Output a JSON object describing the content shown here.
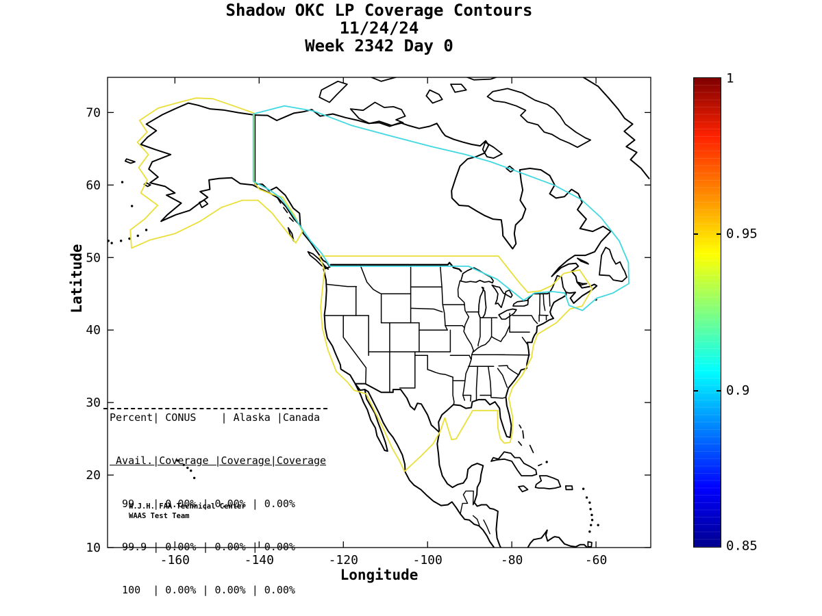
{
  "figure": {
    "title_line1": "Shadow OKC LP Coverage Contours",
    "title_line2": "11/24/24",
    "title_line3": "Week 2342 Day 0"
  },
  "axes": {
    "xlabel": "Longitude",
    "ylabel": "Latitude",
    "xlim": [
      -176,
      -47
    ],
    "ylim": [
      10,
      74.85
    ],
    "xtick_values": [
      -160,
      -140,
      -120,
      -100,
      -80,
      -60
    ],
    "xtick_labels": [
      "-160",
      "-140",
      "-120",
      "-100",
      "-80",
      "-60"
    ],
    "ytick_values": [
      70,
      60,
      50,
      40,
      30,
      20,
      10
    ],
    "ytick_labels": [
      "70",
      "60",
      "50",
      "40",
      "30",
      "20",
      "10"
    ]
  },
  "colorbar": {
    "range": [
      0.85,
      1
    ],
    "tick_values": [
      1,
      0.95,
      0.9,
      0.85
    ],
    "tick_labels": [
      "1",
      "0.95",
      "0.9",
      "0.85"
    ],
    "colormap": [
      {
        "t": 0,
        "c": "#00008f"
      },
      {
        "t": 0.125,
        "c": "#0000ff"
      },
      {
        "t": 0.375,
        "c": "#00ffff"
      },
      {
        "t": 0.5,
        "c": "#80ff80"
      },
      {
        "t": 0.625,
        "c": "#ffff00"
      },
      {
        "t": 0.75,
        "c": "#ff8c00"
      },
      {
        "t": 0.875,
        "c": "#ff2200"
      },
      {
        "t": 1,
        "c": "#7f0000"
      }
    ]
  },
  "coverage_table": {
    "lines": [
      "Percent| CONUS    | Alaska |Canada",
      " Avail.|Coverage |Coverage|Coverage",
      "  99   | 0.00% | 0.00% | 0.00%",
      "  99.9 | 0.00% | 0.00% | 0.00%",
      "  100  | 0.00% | 0.00% | 0.00%"
    ]
  },
  "credit": {
    "line1": "W.J.H. FAA Technical Center",
    "line2": "WAAS Test Team"
  },
  "chart_data": {
    "type": "contour-map",
    "title": "Shadow OKC LP Coverage Contours",
    "date": "11/24/24",
    "week": 2342,
    "day": 0,
    "xlabel": "Longitude",
    "ylabel": "Latitude",
    "xlim": [
      -176,
      -47
    ],
    "ylim": [
      10,
      74.85
    ],
    "colorbar_range": [
      0.85,
      1
    ],
    "colorbar_ticks": [
      1,
      0.95,
      0.9,
      0.85
    ],
    "coverage_table": {
      "columns": [
        "Percent Avail.",
        "CONUS Coverage",
        "Alaska Coverage",
        "Canada Coverage"
      ],
      "rows": [
        {
          "percent_avail": "99",
          "conus": "0.00%",
          "alaska": "0.00%",
          "canada": "0.00%"
        },
        {
          "percent_avail": "99.9",
          "conus": "0.00%",
          "alaska": "0.00%",
          "canada": "0.00%"
        },
        {
          "percent_avail": "100",
          "conus": "0.00%",
          "alaska": "0.00%",
          "canada": "0.00%"
        }
      ]
    },
    "contours": [
      {
        "level": 0.95,
        "color": "#eadf38",
        "loops": [
          [
            [
              -124.5,
              48.3
            ],
            [
              -125.7,
              50.2
            ],
            [
              -83.2,
              50.2
            ],
            [
              -78.3,
              46.6
            ],
            [
              -76.2,
              45.2
            ],
            [
              -73.2,
              45.4
            ],
            [
              -70.6,
              46.1
            ],
            [
              -67.7,
              47.8
            ],
            [
              -63.9,
              48.3
            ],
            [
              -60.9,
              45.7
            ],
            [
              -63.3,
              43.3
            ],
            [
              -66.2,
              42.9
            ],
            [
              -69.4,
              41
            ],
            [
              -71.7,
              40.2
            ],
            [
              -73.9,
              39.4
            ],
            [
              -74.9,
              37.8
            ],
            [
              -75.3,
              36.2
            ],
            [
              -77.5,
              33.8
            ],
            [
              -79.8,
              32.1
            ],
            [
              -80.7,
              30.6
            ],
            [
              -79.8,
              28
            ],
            [
              -79.9,
              25.8
            ],
            [
              -80.4,
              24.5
            ],
            [
              -81.8,
              24.4
            ],
            [
              -82.7,
              25
            ],
            [
              -83.3,
              26.5
            ],
            [
              -83.4,
              28.9
            ],
            [
              -89.3,
              28.9
            ],
            [
              -93.2,
              25
            ],
            [
              -94.3,
              24.9
            ],
            [
              -95.9,
              27.9
            ],
            [
              -97,
              26
            ],
            [
              -98.7,
              24.3
            ],
            [
              -101.6,
              22.6
            ],
            [
              -105.5,
              20.5
            ],
            [
              -106.7,
              22
            ],
            [
              -108.4,
              23.7
            ],
            [
              -110.5,
              26.4
            ],
            [
              -113,
              29.3
            ],
            [
              -114.6,
              31.2
            ],
            [
              -117.5,
              31.7
            ],
            [
              -119,
              32.8
            ],
            [
              -121.7,
              34.3
            ],
            [
              -123.7,
              37.3
            ],
            [
              -125,
              40.3
            ],
            [
              -125.4,
              43.2
            ],
            [
              -124.5,
              48.3
            ]
          ],
          [
            [
              -141.2,
              69.9
            ],
            [
              -146,
              70.9
            ],
            [
              -151,
              71.9
            ],
            [
              -155,
              72
            ],
            [
              -159,
              71.4
            ],
            [
              -164,
              70.6
            ],
            [
              -168.4,
              68.9
            ],
            [
              -166.6,
              67.3
            ],
            [
              -168.9,
              65.9
            ],
            [
              -166.3,
              64.2
            ],
            [
              -168.6,
              62.4
            ],
            [
              -166.6,
              60.7
            ],
            [
              -168.1,
              58.9
            ],
            [
              -164.1,
              57.2
            ],
            [
              -167.2,
              55.3
            ],
            [
              -170.6,
              53.8
            ],
            [
              -170.3,
              51.3
            ],
            [
              -166,
              52.4
            ],
            [
              -160,
              53.3
            ],
            [
              -154,
              55
            ],
            [
              -149,
              56.9
            ],
            [
              -144,
              57.9
            ],
            [
              -140.3,
              57.9
            ],
            [
              -136.9,
              56.1
            ],
            [
              -133.9,
              53.9
            ],
            [
              -131.3,
              52
            ],
            [
              -129.7,
              53.6
            ],
            [
              -131.7,
              55.9
            ],
            [
              -134.4,
              58.3
            ],
            [
              -137.3,
              58.8
            ],
            [
              -139.9,
              59.4
            ],
            [
              -141.2,
              60.4
            ],
            [
              -141.2,
              69.9
            ]
          ]
        ]
      },
      {
        "level": 0.9,
        "color": "#3fd8e0",
        "loops": [
          [
            [
              -141.4,
              69.8
            ],
            [
              -134,
              70.9
            ],
            [
              -127,
              70.2
            ],
            [
              -118,
              68.2
            ],
            [
              -109,
              66.8
            ],
            [
              -99,
              65.3
            ],
            [
              -91,
              64.2
            ],
            [
              -85,
              63.2
            ],
            [
              -77,
              61.5
            ],
            [
              -70,
              60
            ],
            [
              -63.5,
              58
            ],
            [
              -58.8,
              55.5
            ],
            [
              -54.5,
              52.3
            ],
            [
              -52.3,
              49.3
            ],
            [
              -52.2,
              46.4
            ],
            [
              -56,
              45.1
            ],
            [
              -59.8,
              44.4
            ],
            [
              -63.2,
              42.7
            ],
            [
              -66.4,
              43.4
            ],
            [
              -67.4,
              45.1
            ],
            [
              -70.3,
              45.3
            ],
            [
              -74.6,
              45.1
            ],
            [
              -77.2,
              44.1
            ],
            [
              -83.5,
              47
            ],
            [
              -90.3,
              48.8
            ],
            [
              -123.2,
              48.8
            ],
            [
              -125.2,
              50.6
            ],
            [
              -127.7,
              52.2
            ],
            [
              -130.2,
              54.3
            ],
            [
              -132.5,
              56.3
            ],
            [
              -134.8,
              58.2
            ],
            [
              -137.5,
              59.3
            ],
            [
              -139.7,
              60
            ],
            [
              -141.4,
              60.5
            ],
            [
              -141.4,
              69.8
            ]
          ]
        ]
      }
    ]
  }
}
